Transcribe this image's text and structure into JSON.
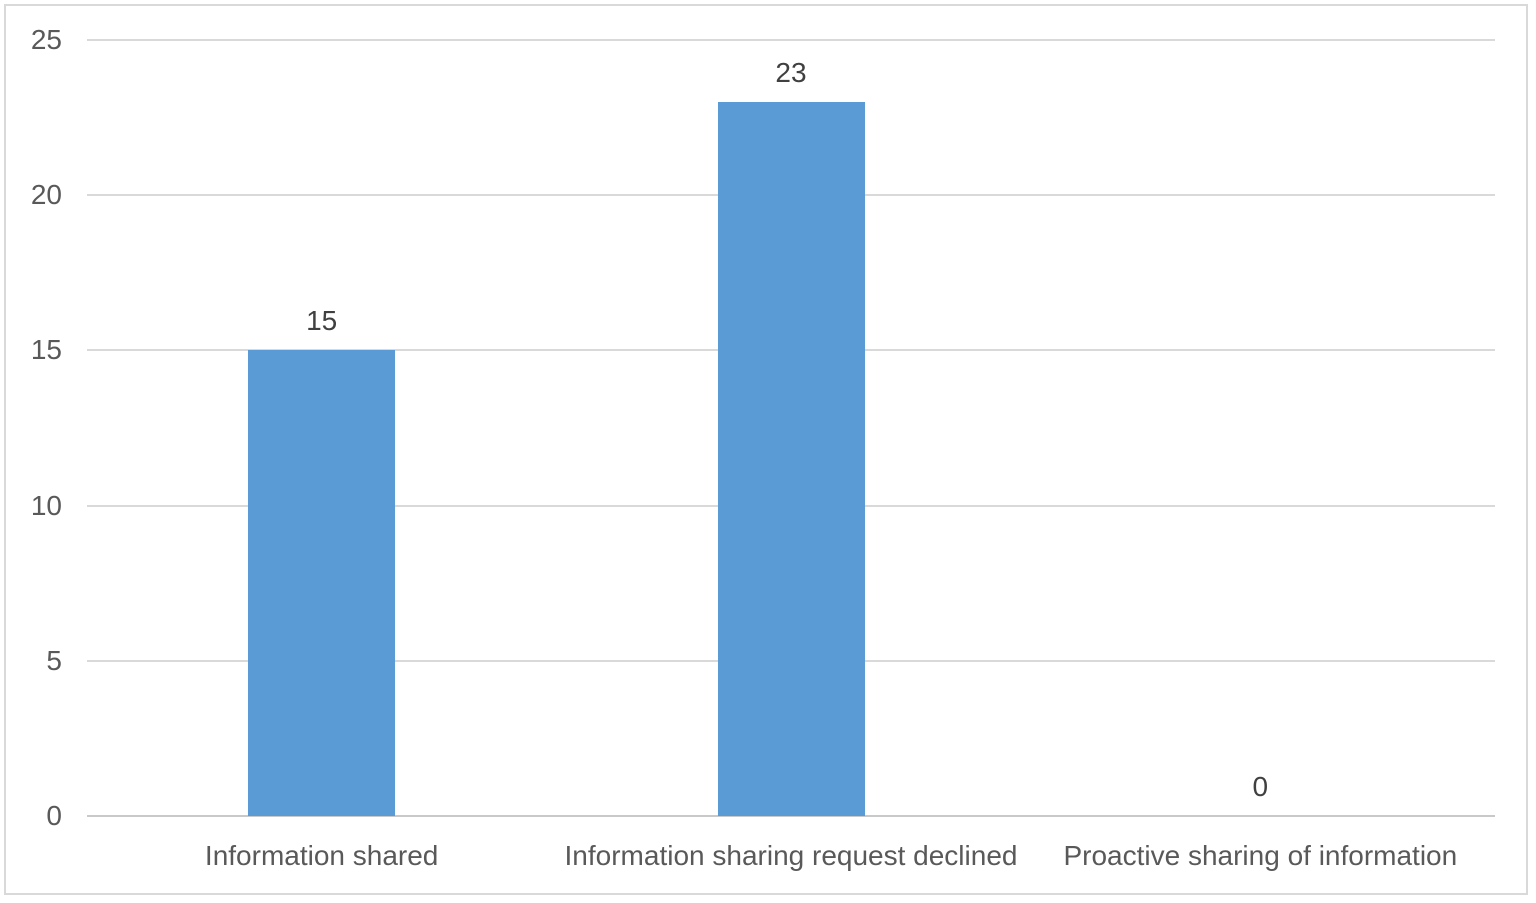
{
  "chart_data": {
    "type": "bar",
    "title": "",
    "categories": [
      "Information shared",
      "Information sharing request declined",
      "Proactive sharing of information"
    ],
    "values": [
      15,
      23,
      0
    ],
    "data_labels": [
      "15",
      "23",
      "0"
    ],
    "yticks": [
      0,
      5,
      10,
      15,
      20,
      25
    ],
    "ylim": [
      0,
      25
    ],
    "xlabel": "",
    "ylabel": "",
    "grid": "horizontal",
    "legend": "none",
    "colors": {
      "bar": "#5B9BD5",
      "gridline": "#D9D9D9",
      "axis_line": "#C9C9C9",
      "tick_label": "#595959",
      "data_label": "#404040",
      "frame_border": "#D9D9D9",
      "background": "#FFFFFF"
    }
  }
}
